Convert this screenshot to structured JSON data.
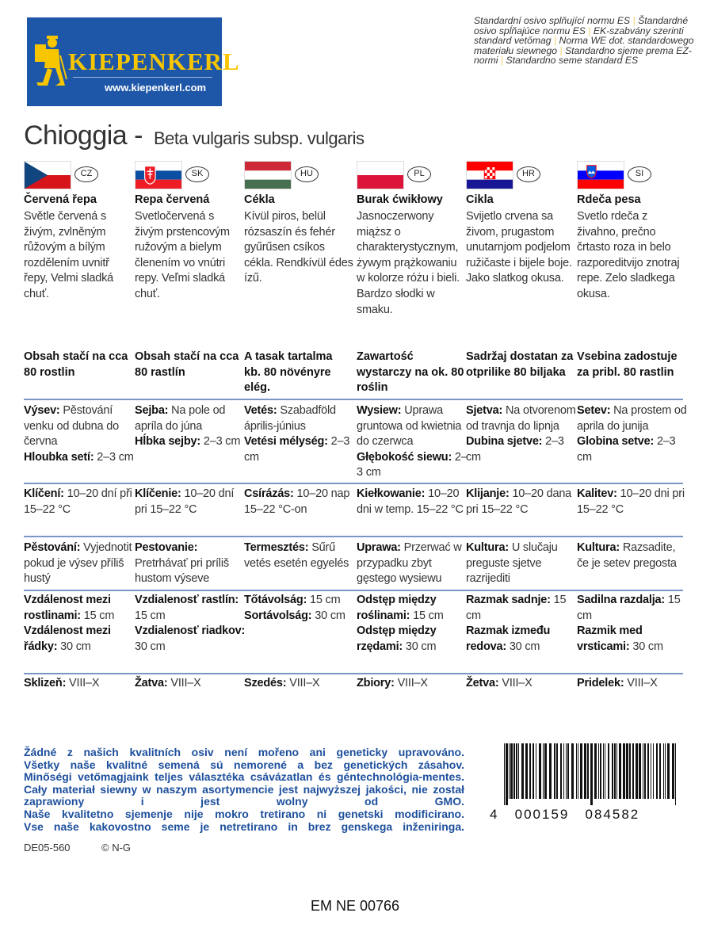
{
  "logo": {
    "brand": "KIEPENKERL",
    "url": "www.kiepenkerl.com"
  },
  "standard_text": [
    "Standardní osivo splňující normu ES",
    "Štandardné osivo spĺňajúce normu ES",
    "EK-szabvány szerinti standard vetőmag",
    "Norma WE dot. standardowego materiału siewnego",
    "Standardno sjeme prema EZ-normi",
    "Standardno seme standard ES"
  ],
  "title": {
    "name": "Chioggia -",
    "latin": "Beta vulgaris subsp. vulgaris"
  },
  "colors": {
    "brand_blue": "#1e57a8",
    "brand_yellow": "#f7c600",
    "rule": "#7a96c4",
    "note_blue": "#1d4f9c"
  },
  "languages": [
    {
      "code": "CZ",
      "flag": "czech-flag",
      "name": "Červená řepa",
      "desc": "Světle červená s živým, zvlněným růžovým a bílým rozdělením uvnitř řepy, Velmi sladká chuť.",
      "header": "Obsah stačí na cca 80 rostlin",
      "rows": [
        [
          {
            "b": "Výsev:",
            "t": " Pěstování venku od dubna do června"
          },
          {
            "b": "Hloubka setí:",
            "t": " 2–3 cm"
          }
        ],
        [
          {
            "b": "Klíčení:",
            "t": " 10–20 dní při 15–22 °C"
          }
        ],
        [
          {
            "b": "Pěstování:",
            "t": " Vyjednotit pokud je výsev příliš hustý"
          }
        ],
        [
          {
            "b": "Vzdálenost mezi rostlinami:",
            "t": " 15 cm"
          },
          {
            "b": "Vzdálenost mezi řádky:",
            "t": " 30 cm"
          }
        ],
        [
          {
            "b": "Sklizeň:",
            "t": " VIII–X"
          }
        ]
      ]
    },
    {
      "code": "SK",
      "flag": "slovak-flag",
      "name": "Repa červená",
      "desc": "Svetločervená s živým prstencovým ružovým a bielym členením vo vnútri repy. Veľmi sladká chuť.",
      "header": "Obsah stačí na cca 80 rastlín",
      "rows": [
        [
          {
            "b": "Sejba:",
            "t": " Na pole od apríla do júna"
          },
          {
            "b": "Hĺbka sejby:",
            "t": " 2–3 cm"
          }
        ],
        [
          {
            "b": "Klíčenie:",
            "t": " 10–20 dní pri 15–22 °C"
          }
        ],
        [
          {
            "b": "Pestovanie:",
            "t": " Pretrhávať pri príliš hustom výseve"
          }
        ],
        [
          {
            "b": "Vzdialenosť rastlín:",
            "t": " 15 cm"
          },
          {
            "b": "Vzdialenosť riadkov:",
            "t": " 30 cm"
          }
        ],
        [
          {
            "b": "Žatva:",
            "t": " VIII–X"
          }
        ]
      ]
    },
    {
      "code": "HU",
      "flag": "hungarian-flag",
      "name": "Cékla",
      "desc": "Kívül piros, belül rózsaszín és fehér gyűrűsen csíkos cékla. Rendkívül édes ízű.",
      "header": "A tasak tartalma kb. 80 növényre elég.",
      "rows": [
        [
          {
            "b": "Vetés:",
            "t": " Szabadföld április-június"
          },
          {
            "b": "Vetési mélység:",
            "t": " 2–3 cm"
          }
        ],
        [
          {
            "b": "Csírázás:",
            "t": " 10–20 nap 15–22 °C-on"
          }
        ],
        [
          {
            "b": "Termesztés:",
            "t": " Sűrű vetés esetén egyelés"
          }
        ],
        [
          {
            "b": "Tőtávolság:",
            "t": " 15 cm"
          },
          {
            "b": "Sortávolság:",
            "t": " 30 cm"
          }
        ],
        [
          {
            "b": "Szedés:",
            "t": " VIII–X"
          }
        ]
      ]
    },
    {
      "code": "PL",
      "flag": "polish-flag",
      "name": "Burak ćwikłowy",
      "desc": "Jasnoczerwony miąższ o charakterystycznym, żywym prążkowaniu w kolorze różu i bieli. Bardzo słodki w smaku.",
      "header": "Zawartość wystarczy na ok. 80 roślin",
      "rows": [
        [
          {
            "b": "Wysiew:",
            "t": " Uprawa gruntowa od kwietnia do czerwca"
          },
          {
            "b": "Głębokość siewu:",
            "t": " 2–3 cm"
          }
        ],
        [
          {
            "b": "Kiełkowanie:",
            "t": " 10–20 dni w temp. 15–22 °C"
          }
        ],
        [
          {
            "b": "Uprawa:",
            "t": " Przerwać w przypadku zbyt gęstego wysiewu"
          }
        ],
        [
          {
            "b": "Odstęp między roślinami:",
            "t": " 15 cm"
          },
          {
            "b": "Odstęp między rzędami:",
            "t": " 30 cm"
          }
        ],
        [
          {
            "b": "Zbiory:",
            "t": " VIII–X"
          }
        ]
      ]
    },
    {
      "code": "HR",
      "flag": "croatian-flag",
      "name": "Cikla",
      "desc": "Svijetlo crvena sa živom, prugastom unutarnjom podjelom ružičaste i bijele boje. Jako slatkog okusa.",
      "header": "Sadržaj dostatan za otprilike 80 biljaka",
      "rows": [
        [
          {
            "b": "Sjetva:",
            "t": " Na otvorenom od travnja do lipnja"
          },
          {
            "b": "Dubina sjetve:",
            "t": " 2–3 cm"
          }
        ],
        [
          {
            "b": "Klijanje:",
            "t": " 10–20 dana pri 15–22 °C"
          }
        ],
        [
          {
            "b": "Kultura:",
            "t": " U slučaju preguste sjetve razrijediti"
          }
        ],
        [
          {
            "b": "Razmak sadnje:",
            "t": " 15 cm"
          },
          {
            "b": "Razmak između redova:",
            "t": " 30 cm"
          }
        ],
        [
          {
            "b": "Žetva:",
            "t": " VIII–X"
          }
        ]
      ]
    },
    {
      "code": "SI",
      "flag": "slovenian-flag",
      "name": "Rdeča pesa",
      "desc": "Svetlo rdeča z živahno, prečno črtasto roza in belo razporeditvijo znotraj repe. Zelo sladkega okusa.",
      "header": "Vsebina zadostuje za pribl. 80 rastlin",
      "rows": [
        [
          {
            "b": "Setev:",
            "t": " Na prostem od aprila do junija"
          },
          {
            "b": "Globina setve:",
            "t": " 2–3 cm"
          }
        ],
        [
          {
            "b": "Kalitev:",
            "t": " 10–20 dni pri 15–22 °C"
          }
        ],
        [
          {
            "b": "Kultura:",
            "t": " Razsadite, če je setev pregosta"
          }
        ],
        [
          {
            "b": "Sadilna razdalja:",
            "t": " 15 cm"
          },
          {
            "b": "Razmik med vrsticami:",
            "t": " 30 cm"
          }
        ],
        [
          {
            "b": "Pridelek:",
            "t": " VIII–X"
          }
        ]
      ]
    }
  ],
  "quality_note": [
    "Žádné z našich kvalitních osiv není mořeno ani geneticky upravováno.",
    "Všetky naše kvalitné semená sú nemorené a bez genetických zásahov.",
    "Minőségi vetőmagjaink teljes választéka csávázatlan és géntechnológia-mentes.",
    "Cały materiał siewny w naszym asortymencie jest najwyższej jakości, nie został",
    "zaprawiony i jest wolny od GMO.",
    "Naše kvalitetno sjemenje nije mokro tretirano ni genetski modificirano.",
    "Vse naše kakovostno seme je netretirano in brez genskega inženiringa."
  ],
  "footer": {
    "code": "DE05-560",
    "copyright": "© N-G",
    "em": "EM NE 00766"
  },
  "barcode": {
    "digits": "4   000159   084582"
  }
}
